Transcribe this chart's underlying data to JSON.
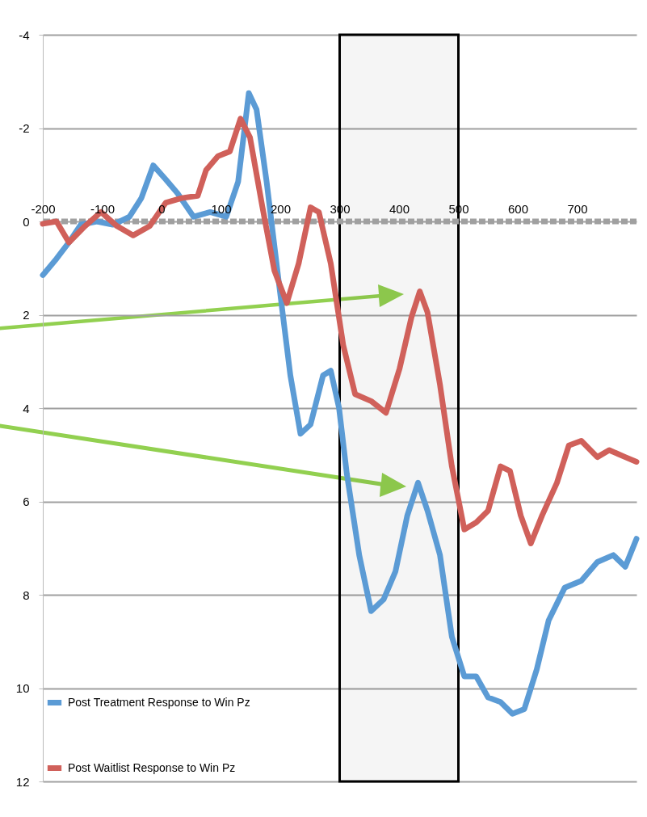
{
  "chart_data": {
    "type": "line",
    "xlim": [
      -200,
      800
    ],
    "xticks": [
      -200,
      -100,
      0,
      100,
      200,
      300,
      400,
      500,
      600,
      700
    ],
    "ylim": [
      12,
      -4
    ],
    "yticks": [
      -4,
      -2,
      0,
      2,
      4,
      6,
      8,
      10,
      12
    ],
    "grid": "y",
    "legend": "bottom left",
    "ref_lines": [
      {
        "axis": "y",
        "value": 0,
        "color": "#a0a0a0",
        "line_style": "dashed"
      }
    ],
    "bands": [
      {
        "axis": "x",
        "from": 300,
        "to": 500,
        "color": "#000000"
      }
    ],
    "series": [
      {
        "name": "Post Treatment Response to Win Pz",
        "color": "#5b9bd5",
        "x": [
          -200,
          -177,
          -156,
          -136,
          -109,
          -82,
          -54,
          -34,
          -14,
          7,
          27,
          54,
          82,
          109,
          129,
          147,
          160,
          177,
          197,
          217,
          234,
          251,
          272,
          285,
          299,
          312,
          333,
          353,
          374,
          394,
          414,
          432,
          448,
          469,
          489,
          510,
          530,
          550,
          571,
          591,
          611,
          632,
          652,
          679,
          707,
          734,
          761,
          781,
          800
        ],
        "values": [
          1.15,
          0.8,
          0.45,
          0.07,
          0,
          0.07,
          -0.1,
          -0.5,
          -1.2,
          -0.9,
          -0.6,
          -0.1,
          -0.2,
          -0.1,
          -0.85,
          -2.75,
          -2.4,
          -0.85,
          1.25,
          3.3,
          4.55,
          4.35,
          3.3,
          3.2,
          4.0,
          5.4,
          7.15,
          8.35,
          8.1,
          7.5,
          6.3,
          5.6,
          6.2,
          7.15,
          8.9,
          9.75,
          9.75,
          10.2,
          10.3,
          10.55,
          10.45,
          9.6,
          8.55,
          7.85,
          7.7,
          7.3,
          7.15,
          7.4,
          6.8
        ]
      },
      {
        "name": "Post Waitlist Response to Win Pz",
        "color": "#d0605a",
        "x": [
          -200,
          -177,
          -156,
          -129,
          -102,
          -75,
          -48,
          -20,
          7,
          34,
          61,
          75,
          95,
          115,
          133,
          149,
          170,
          190,
          211,
          231,
          251,
          265,
          285,
          306,
          326,
          353,
          378,
          401,
          421,
          435,
          448,
          469,
          489,
          510,
          530,
          550,
          571,
          587,
          605,
          622,
          641,
          666,
          686,
          707,
          734,
          754,
          781,
          800
        ],
        "values": [
          0.05,
          0,
          0.45,
          0.1,
          -0.2,
          0.1,
          0.3,
          0.1,
          -0.4,
          -0.5,
          -0.55,
          -1.1,
          -1.4,
          -1.5,
          -2.2,
          -1.8,
          -0.3,
          1.05,
          1.75,
          0.9,
          -0.3,
          -0.2,
          0.9,
          2.65,
          3.7,
          3.85,
          4.1,
          3.15,
          2.05,
          1.5,
          1.95,
          3.5,
          5.25,
          6.6,
          6.45,
          6.2,
          5.25,
          5.35,
          6.3,
          6.9,
          6.3,
          5.6,
          4.8,
          4.7,
          5.05,
          4.9,
          5.05,
          5.15
        ]
      }
    ]
  }
}
